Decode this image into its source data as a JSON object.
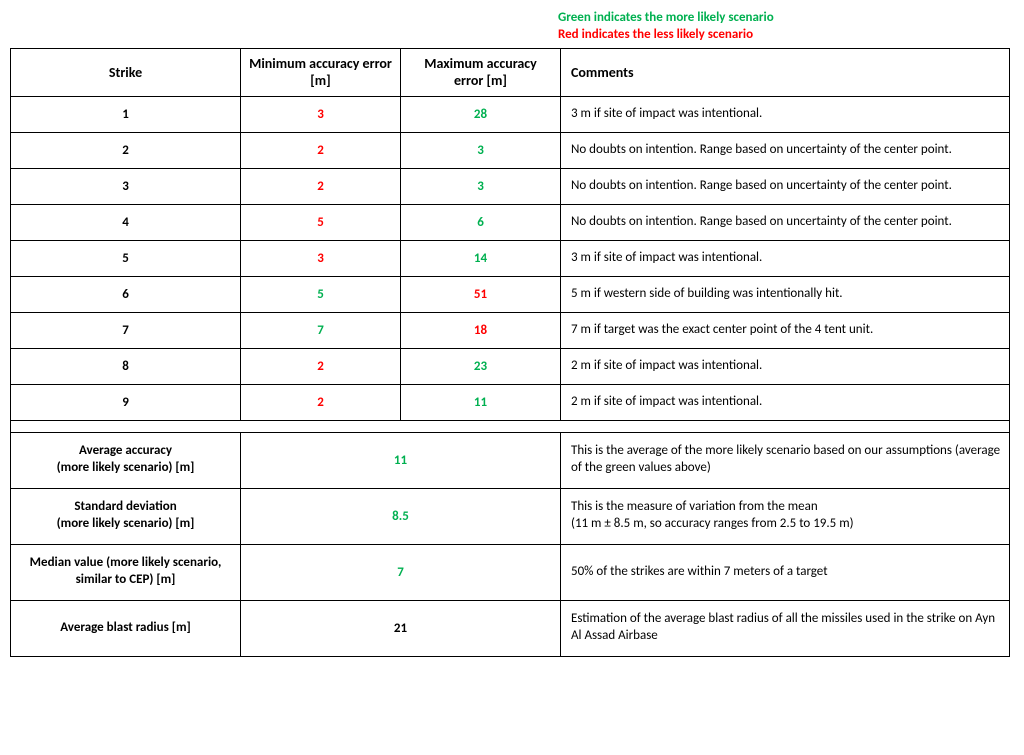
{
  "legend": {
    "green": "Green indicates the more likely scenario",
    "red": "Red indicates the less likely scenario"
  },
  "colors": {
    "green": "#00b050",
    "red": "#ff0000",
    "black": "#000000"
  },
  "headers": {
    "strike": "Strike",
    "min": "Minimum accuracy error [m]",
    "max": "Maximum accuracy error [m]",
    "comments": "Comments"
  },
  "rows": [
    {
      "strike": "1",
      "min": "3",
      "min_color": "red",
      "max": "28",
      "max_color": "green",
      "comment": "3 m if site of impact was intentional."
    },
    {
      "strike": "2",
      "min": "2",
      "min_color": "red",
      "max": "3",
      "max_color": "green",
      "comment": "No doubts on intention. Range based on uncertainty of the center point."
    },
    {
      "strike": "3",
      "min": "2",
      "min_color": "red",
      "max": "3",
      "max_color": "green",
      "comment": "No doubts on intention. Range based on uncertainty of the center point."
    },
    {
      "strike": "4",
      "min": "5",
      "min_color": "red",
      "max": "6",
      "max_color": "green",
      "comment": "No doubts on intention. Range based on uncertainty of the center point."
    },
    {
      "strike": "5",
      "min": "3",
      "min_color": "red",
      "max": "14",
      "max_color": "green",
      "comment": "3 m if site of impact was intentional."
    },
    {
      "strike": "6",
      "min": "5",
      "min_color": "green",
      "max": "51",
      "max_color": "red",
      "comment": "5 m if western side of building was intentionally hit."
    },
    {
      "strike": "7",
      "min": "7",
      "min_color": "green",
      "max": "18",
      "max_color": "red",
      "comment": "7 m if target was the exact center point of the 4 tent unit."
    },
    {
      "strike": "8",
      "min": "2",
      "min_color": "red",
      "max": "23",
      "max_color": "green",
      "comment": "2 m if site of impact was intentional."
    },
    {
      "strike": "9",
      "min": "2",
      "min_color": "red",
      "max": "11",
      "max_color": "green",
      "comment": "2 m if site of impact was intentional."
    }
  ],
  "summary": [
    {
      "label": "Average accuracy\n(more likely scenario) [m]",
      "value": "11",
      "value_color": "green",
      "comment": "This is the average of the more likely scenario based on our assumptions (average of the green values above)"
    },
    {
      "label": "Standard deviation\n(more likely scenario) [m]",
      "value": "8.5",
      "value_color": "green",
      "comment": "This is the measure of variation from the mean\n(11 m ± 8.5 m, so accuracy ranges from 2.5 to 19.5 m)"
    },
    {
      "label": "Median value (more likely scenario, similar to CEP) [m]",
      "value": "7",
      "value_color": "green",
      "comment": "50% of the strikes are within 7 meters of a target"
    },
    {
      "label": "Average blast radius [m]",
      "value": "21",
      "value_color": "black",
      "comment": "Estimation of the average blast radius of all the missiles used in the strike on Ayn Al Assad Airbase"
    }
  ]
}
